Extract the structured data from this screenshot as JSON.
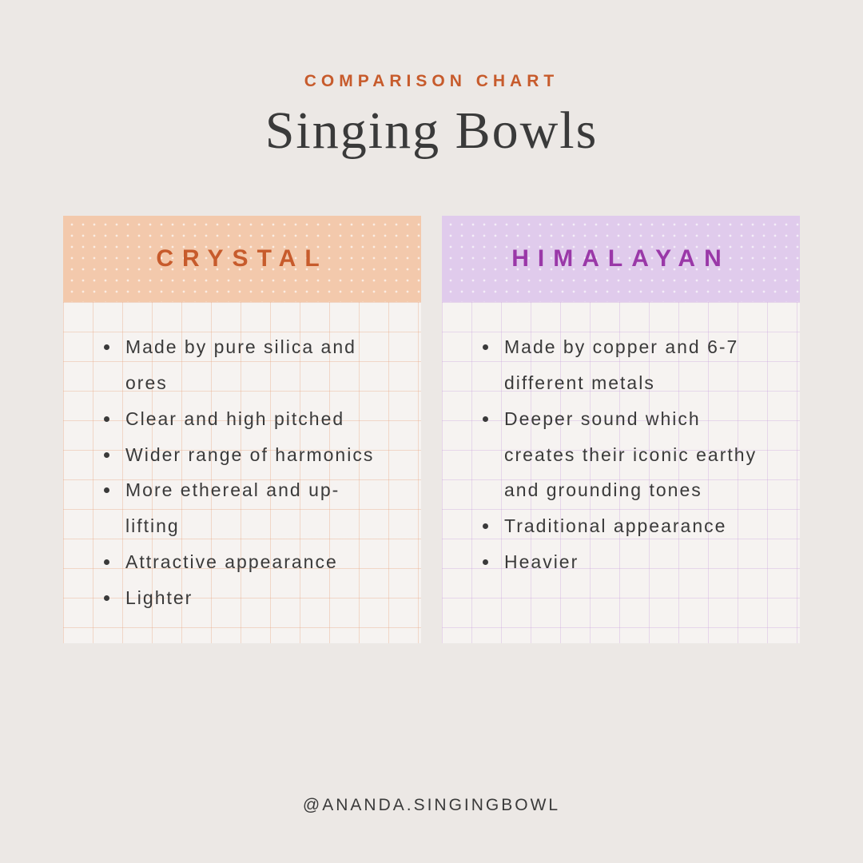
{
  "header": {
    "subtitle": "COMPARISON CHART",
    "title": "Singing Bowls"
  },
  "columns": [
    {
      "label": "CRYSTAL",
      "label_color": "#c75b2c",
      "header_bg": "#f3c9ac",
      "grid_color": "rgba(231,160,120,0.35)",
      "items": [
        "Made by pure silica and ores",
        "Clear and high pitched",
        "Wider range of harmonics",
        "More ethereal and up-lifting",
        "Attractive appearance",
        "Lighter"
      ]
    },
    {
      "label": "HIMALAYAN",
      "label_color": "#9a38a8",
      "header_bg": "#e0cbec",
      "grid_color": "rgba(200,160,220,0.35)",
      "items": [
        "Made by copper and 6-7 different metals",
        "Deeper sound which creates their iconic earthy and grounding tones",
        "Traditional appearance",
        "Heavier"
      ]
    }
  ],
  "footer": {
    "handle": "@ANANDA.SINGINGBOWL"
  },
  "styling": {
    "page_bg": "#ece8e5",
    "body_bg": "#f6f3f1",
    "text_color": "#3a3a3a",
    "subtitle_color": "#c75b2c",
    "title_fontsize": 66,
    "subtitle_fontsize": 21,
    "header_fontsize": 30,
    "item_fontsize": 23,
    "footer_fontsize": 21,
    "grid_size": 37,
    "dot_size": 14
  }
}
